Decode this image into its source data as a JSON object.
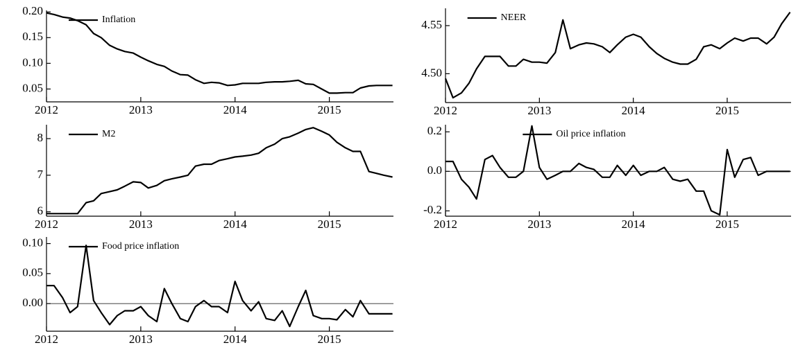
{
  "chart_data": [
    {
      "type": "line",
      "x": [
        2012,
        2012.08,
        2012.17,
        2012.25,
        2012.33,
        2012.42,
        2012.5,
        2012.58,
        2012.67,
        2012.75,
        2012.83,
        2012.92,
        2013,
        2013.08,
        2013.17,
        2013.25,
        2013.33,
        2013.42,
        2013.5,
        2013.58,
        2013.67,
        2013.75,
        2013.83,
        2013.92,
        2014,
        2014.08,
        2014.17,
        2014.25,
        2014.33,
        2014.42,
        2014.5,
        2014.58,
        2014.67,
        2014.75,
        2014.83,
        2014.92,
        2015,
        2015.08,
        2015.17,
        2015.25,
        2015.33,
        2015.42,
        2015.5,
        2015.58,
        2015.67
      ],
      "series": [
        {
          "name": "Inflation",
          "color": "#000000",
          "values": [
            0.198,
            0.195,
            0.19,
            0.188,
            0.183,
            0.175,
            0.158,
            0.15,
            0.135,
            0.128,
            0.123,
            0.12,
            0.112,
            0.105,
            0.098,
            0.094,
            0.085,
            0.078,
            0.077,
            0.068,
            0.061,
            0.063,
            0.062,
            0.057,
            0.058,
            0.061,
            0.061,
            0.061,
            0.063,
            0.064,
            0.064,
            0.065,
            0.067,
            0.06,
            0.059,
            0.05,
            0.042,
            0.042,
            0.043,
            0.043,
            0.052,
            0.056,
            0.057,
            0.057,
            0.057
          ]
        }
      ],
      "xlim": [
        2012,
        2015.68
      ],
      "xticks": [
        2012,
        2013,
        2014,
        2015
      ],
      "ylim": [
        0.025,
        0.203
      ],
      "yticks": [
        0.05,
        {
          "value": 0.1,
          "label": "0.10"
        },
        0.15,
        {
          "value": 0.2,
          "label": "0.20"
        }
      ],
      "legend": "upper-left"
    },
    {
      "type": "line",
      "x": [
        2012,
        2012.08,
        2012.17,
        2012.25,
        2012.33,
        2012.42,
        2012.5,
        2012.58,
        2012.67,
        2012.75,
        2012.83,
        2012.92,
        2013,
        2013.08,
        2013.17,
        2013.25,
        2013.33,
        2013.42,
        2013.5,
        2013.58,
        2013.67,
        2013.75,
        2013.83,
        2013.92,
        2014,
        2014.08,
        2014.17,
        2014.25,
        2014.33,
        2014.42,
        2014.5,
        2014.58,
        2014.67,
        2014.75,
        2014.83,
        2014.92,
        2015,
        2015.08,
        2015.17,
        2015.25,
        2015.33,
        2015.42,
        2015.5,
        2015.58,
        2015.67
      ],
      "series": [
        {
          "name": "NEER",
          "color": "#000000",
          "values": [
            4.495,
            4.475,
            4.48,
            4.49,
            4.505,
            4.518,
            4.518,
            4.518,
            4.508,
            4.508,
            4.515,
            4.512,
            4.512,
            4.511,
            4.522,
            4.556,
            4.526,
            4.53,
            4.532,
            4.531,
            4.528,
            4.522,
            4.53,
            4.538,
            4.541,
            4.538,
            4.528,
            4.521,
            4.516,
            4.512,
            4.51,
            4.51,
            4.515,
            4.528,
            4.53,
            4.526,
            4.532,
            4.537,
            4.534,
            4.537,
            4.537,
            4.531,
            4.538,
            4.552,
            4.564
          ]
        }
      ],
      "xlim": [
        2012,
        2015.68
      ],
      "xticks": [
        2012,
        2013,
        2014,
        2015
      ],
      "ylim": [
        4.47,
        4.568
      ],
      "yticks": [
        {
          "value": 4.5,
          "label": "4.50"
        },
        4.55
      ],
      "legend": "upper-left"
    },
    {
      "type": "line",
      "x": [
        2012,
        2012.08,
        2012.17,
        2012.25,
        2012.33,
        2012.42,
        2012.5,
        2012.58,
        2012.67,
        2012.75,
        2012.83,
        2012.92,
        2013,
        2013.08,
        2013.17,
        2013.25,
        2013.33,
        2013.42,
        2013.5,
        2013.58,
        2013.67,
        2013.75,
        2013.83,
        2013.92,
        2014,
        2014.08,
        2014.17,
        2014.25,
        2014.33,
        2014.42,
        2014.5,
        2014.58,
        2014.67,
        2014.75,
        2014.83,
        2014.92,
        2015,
        2015.08,
        2015.17,
        2015.25,
        2015.33,
        2015.42,
        2015.5,
        2015.58,
        2015.67
      ],
      "series": [
        {
          "name": "M2",
          "color": "#000000",
          "values": [
            5.95,
            5.95,
            5.95,
            5.95,
            5.95,
            6.25,
            6.3,
            6.5,
            6.55,
            6.6,
            6.7,
            6.82,
            6.8,
            6.65,
            6.72,
            6.85,
            6.9,
            6.95,
            7.0,
            7.25,
            7.3,
            7.3,
            7.4,
            7.45,
            7.5,
            7.52,
            7.55,
            7.6,
            7.75,
            7.85,
            8.0,
            8.05,
            8.15,
            8.25,
            8.3,
            8.2,
            8.1,
            7.9,
            7.75,
            7.65,
            7.65,
            7.1,
            7.05,
            7.0,
            6.95
          ]
        }
      ],
      "xlim": [
        2012,
        2015.68
      ],
      "xticks": [
        2012,
        2013,
        2014,
        2015
      ],
      "ylim": [
        5.88,
        8.38
      ],
      "yticks": [
        6,
        7,
        8
      ],
      "legend": "upper-left"
    },
    {
      "type": "line",
      "x": [
        2012,
        2012.08,
        2012.17,
        2012.25,
        2012.33,
        2012.42,
        2012.5,
        2012.58,
        2012.67,
        2012.75,
        2012.83,
        2012.92,
        2013,
        2013.08,
        2013.17,
        2013.25,
        2013.33,
        2013.42,
        2013.5,
        2013.58,
        2013.67,
        2013.75,
        2013.83,
        2013.92,
        2014,
        2014.08,
        2014.17,
        2014.25,
        2014.33,
        2014.42,
        2014.5,
        2014.58,
        2014.67,
        2014.75,
        2014.83,
        2014.92,
        2015,
        2015.08,
        2015.17,
        2015.25,
        2015.33,
        2015.42,
        2015.5,
        2015.58,
        2015.67
      ],
      "series": [
        {
          "name": "Oil price inflation",
          "color": "#000000",
          "values": [
            0.05,
            0.05,
            -0.04,
            -0.08,
            -0.14,
            0.06,
            0.08,
            0.02,
            -0.03,
            -0.03,
            0.0,
            0.23,
            0.02,
            -0.04,
            -0.02,
            0.0,
            0.0,
            0.04,
            0.02,
            0.01,
            -0.03,
            -0.03,
            0.03,
            -0.02,
            0.03,
            -0.02,
            0.0,
            0.0,
            0.02,
            -0.04,
            -0.05,
            -0.04,
            -0.1,
            -0.1,
            -0.2,
            -0.22,
            0.11,
            -0.03,
            0.06,
            0.07,
            -0.02,
            0.0,
            0.0,
            0.0,
            0.0
          ]
        }
      ],
      "xlim": [
        2012,
        2015.68
      ],
      "xticks": [
        2012,
        2013,
        2014,
        2015
      ],
      "ylim": [
        -0.227,
        0.236
      ],
      "yticks": [
        -0.2,
        {
          "value": 0,
          "label": "0.0"
        },
        0.2
      ],
      "legend": "upper-center"
    },
    {
      "type": "line",
      "x": [
        2012,
        2012.08,
        2012.17,
        2012.25,
        2012.33,
        2012.42,
        2012.5,
        2012.58,
        2012.67,
        2012.75,
        2012.83,
        2012.92,
        2013,
        2013.08,
        2013.17,
        2013.25,
        2013.33,
        2013.42,
        2013.5,
        2013.58,
        2013.67,
        2013.75,
        2013.83,
        2013.92,
        2014,
        2014.08,
        2014.17,
        2014.25,
        2014.33,
        2014.42,
        2014.5,
        2014.58,
        2014.67,
        2014.75,
        2014.83,
        2014.92,
        2015,
        2015.08,
        2015.17,
        2015.25,
        2015.33,
        2015.42,
        2015.5,
        2015.58,
        2015.67
      ],
      "series": [
        {
          "name": "Food price inflation",
          "color": "#000000",
          "values": [
            0.03,
            0.03,
            0.01,
            -0.015,
            -0.005,
            0.097,
            0.005,
            -0.015,
            -0.035,
            -0.02,
            -0.012,
            -0.012,
            -0.005,
            -0.02,
            -0.03,
            0.025,
            0.0,
            -0.025,
            -0.03,
            -0.005,
            0.005,
            -0.005,
            -0.005,
            -0.015,
            0.037,
            0.005,
            -0.012,
            0.003,
            -0.025,
            -0.028,
            -0.012,
            -0.038,
            -0.005,
            0.022,
            -0.02,
            -0.025,
            -0.025,
            -0.027,
            -0.01,
            -0.022,
            0.005,
            -0.017,
            -0.017,
            -0.017,
            -0.017
          ]
        }
      ],
      "xlim": [
        2012,
        2015.68
      ],
      "xticks": [
        2012,
        2013,
        2014,
        2015
      ],
      "ylim": [
        -0.046,
        0.111
      ],
      "yticks": [
        {
          "value": 0,
          "label": "0.00"
        },
        0.05,
        {
          "value": 0.1,
          "label": "0.10"
        }
      ],
      "legend": "upper-left"
    }
  ]
}
